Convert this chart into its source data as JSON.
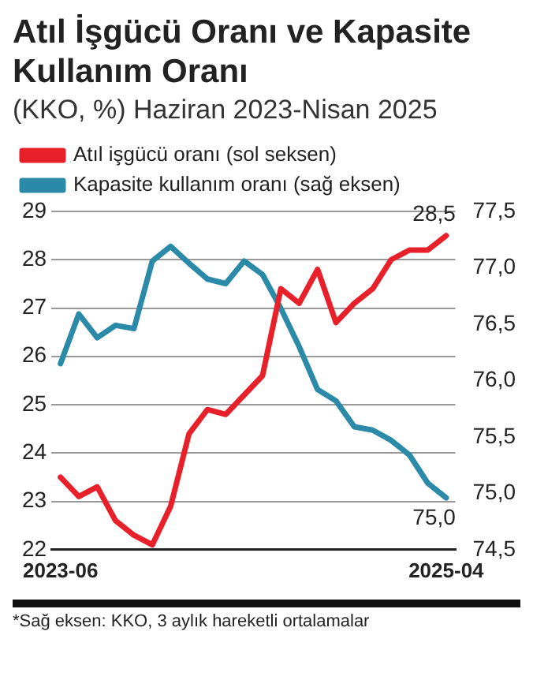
{
  "chart_data": {
    "type": "line",
    "title": "Atıl İşgücü Oranı ve Kapasite Kullanım Oranı",
    "subtitle": "(KKO, %) Haziran 2023-Nisan 2025",
    "categories": [
      "2023-06",
      null,
      null,
      null,
      null,
      null,
      null,
      null,
      null,
      null,
      null,
      null,
      null,
      null,
      null,
      null,
      null,
      null,
      null,
      null,
      null,
      "2025-04"
    ],
    "series": [
      {
        "name": "Atıl işgücü oranı (sol seksen)",
        "color": "#e8202a",
        "values": [
          23.5,
          23.1,
          23.3,
          22.6,
          22.3,
          22.1,
          22.9,
          24.4,
          24.9,
          24.8,
          25.2,
          25.6,
          27.4,
          27.1,
          27.8,
          26.7,
          27.1,
          27.4,
          28.0,
          28.2,
          28.2,
          28.5
        ],
        "value_labels": [
          null,
          null,
          null,
          null,
          null,
          null,
          null,
          null,
          null,
          null,
          null,
          null,
          null,
          null,
          null,
          null,
          null,
          null,
          null,
          null,
          null,
          "28,5"
        ]
      },
      {
        "name": "Kapasite kullanım oranı (sağ eksen)",
        "color": "#2a8aa8",
        "axis": "y2",
        "values": [
          76.15,
          76.59,
          76.38,
          76.49,
          76.46,
          77.06,
          77.19,
          77.04,
          76.9,
          76.86,
          77.06,
          76.94,
          76.64,
          76.3,
          75.92,
          75.82,
          75.59,
          75.56,
          75.47,
          75.34,
          75.09,
          74.96
        ],
        "value_labels": [
          null,
          null,
          null,
          null,
          null,
          null,
          null,
          null,
          null,
          null,
          null,
          null,
          null,
          null,
          null,
          null,
          null,
          null,
          null,
          null,
          null,
          "75,0"
        ]
      }
    ],
    "ylim": [
      22,
      29
    ],
    "yticks": [
      22,
      23,
      24,
      25,
      26,
      27,
      28,
      29
    ],
    "y2lim": [
      74.5,
      77.5
    ],
    "y2ticks": [
      {
        "value": 74.5,
        "label": "74,5"
      },
      {
        "value": 75,
        "label": "75,0"
      },
      {
        "value": 75.5,
        "label": "75,5"
      },
      {
        "value": 76,
        "label": "76,0"
      },
      {
        "value": 76.5,
        "label": "76,5"
      },
      {
        "value": 77,
        "label": "77,0"
      },
      {
        "value": 77.5,
        "label": "77,5"
      }
    ],
    "grid": "y",
    "legend": "top left",
    "marker": "none",
    "annotations": [
      "*Sağ eksen: KKO, 3 aylık hareketli ortalamalar"
    ]
  }
}
